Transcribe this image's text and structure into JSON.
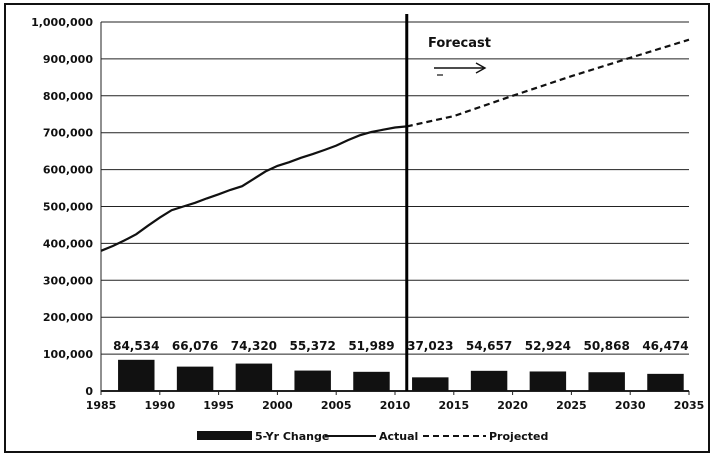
{
  "chart_data": {
    "type": "bar+line",
    "y_ticks": [
      "1,000,000",
      "900,000",
      "800,000",
      "700,000",
      "600,000",
      "500,000",
      "400,000",
      "300,000",
      "200,000",
      "100,000",
      "0"
    ],
    "ylim": [
      0,
      1000000
    ],
    "xlim": [
      1985,
      2035
    ],
    "x_ticks": [
      "1985",
      "1990",
      "1995",
      "2000",
      "2005",
      "2010",
      "2015",
      "2020",
      "2025",
      "2030",
      "2035"
    ],
    "grid": true,
    "divider_year": 2011,
    "forecast_label": "Forecast",
    "bars": {
      "name": "5-Yr Change",
      "x": [
        1988,
        1993,
        1998,
        2003,
        2008,
        2013,
        2018,
        2023,
        2028,
        2033
      ],
      "values": [
        84534,
        66076,
        74320,
        55372,
        51989,
        37023,
        54657,
        52924,
        50868,
        46474
      ],
      "labels": [
        "84,534",
        "66,076",
        "74,320",
        "55,372",
        "51,989",
        "37,023",
        "54,657",
        "52,924",
        "50,868",
        "46,474"
      ]
    },
    "actual": {
      "name": "Actual",
      "x": [
        1985,
        1986,
        1987,
        1988,
        1989,
        1990,
        1991,
        1992,
        1993,
        1994,
        1995,
        1996,
        1997,
        1998,
        1999,
        2000,
        2001,
        2002,
        2003,
        2004,
        2005,
        2006,
        2007,
        2008,
        2009,
        2010,
        2011
      ],
      "values": [
        380000,
        393000,
        408000,
        425000,
        448000,
        470000,
        490000,
        500000,
        510000,
        522000,
        533000,
        545000,
        555000,
        575000,
        595000,
        610000,
        620000,
        632000,
        642000,
        653000,
        665000,
        680000,
        693000,
        702000,
        708000,
        714000,
        717000
      ]
    },
    "projected": {
      "name": "Projected",
      "x": [
        2011,
        2015,
        2020,
        2025,
        2030,
        2035
      ],
      "values": [
        717000,
        745000,
        800000,
        853000,
        903000,
        952000
      ]
    },
    "legend_position": "bottom"
  }
}
